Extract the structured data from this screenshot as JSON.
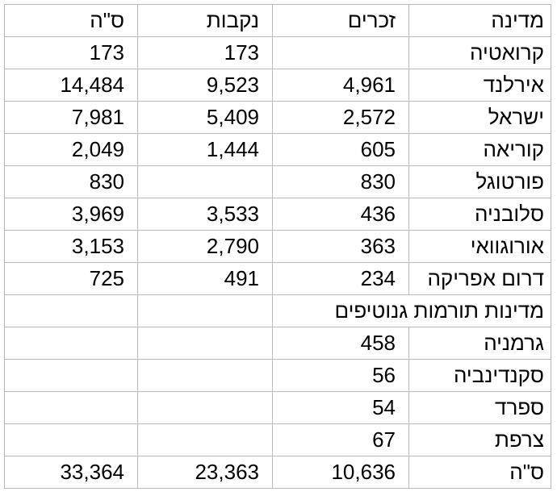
{
  "table": {
    "header": [
      "מדינה",
      "זכרים",
      "נקבות",
      "ס\"ה"
    ],
    "rows": [
      [
        "קרואטיה",
        null,
        "173",
        "173"
      ],
      [
        "אירלנד",
        "4,961",
        "9,523",
        "14,484"
      ],
      [
        "ישראל",
        "2,572",
        "5,409",
        "7,981"
      ],
      [
        "קוריאה",
        "605",
        "1,444",
        "2,049"
      ],
      [
        "פורטוגל",
        "830",
        null,
        "830"
      ],
      [
        "סלובניה",
        "436",
        "3,533",
        "3,969"
      ],
      [
        "אורוגוואי",
        "363",
        "2,790",
        "3,153"
      ],
      [
        "דרום אפריקה",
        "234",
        "491",
        "725"
      ],
      [
        "מדינות תורמות גנוטיפים"
      ],
      [
        "גרמניה",
        "458",
        null,
        null
      ],
      [
        "סקנדינביה",
        "56",
        null,
        null
      ],
      [
        "ספרד",
        "54",
        null,
        null
      ],
      [
        "צרפת",
        "67",
        null,
        null
      ],
      [
        "ס\"ה",
        "10,636",
        "23,363",
        "33,364"
      ]
    ]
  }
}
